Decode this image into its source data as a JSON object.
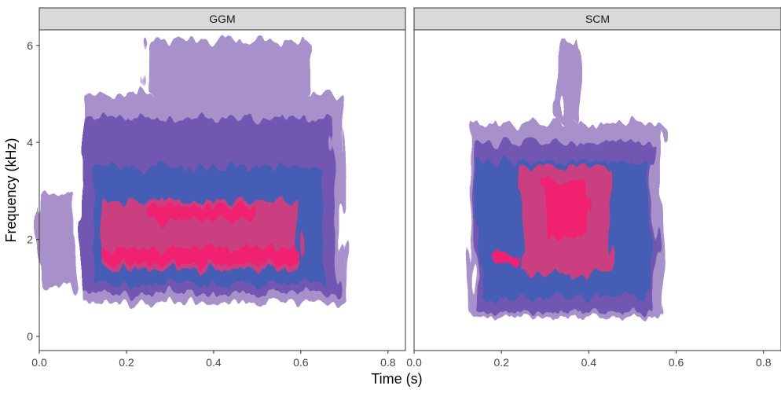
{
  "chart_data": {
    "type": "spectrogram",
    "x_label": "Time (s)",
    "y_label": "Frequency (kHz)",
    "xlim": [
      0,
      0.84
    ],
    "ylim": [
      -0.29,
      6.32
    ],
    "xticks": [
      {
        "value": 0,
        "label": "0.0"
      },
      {
        "value": 0.2,
        "label": "0.2"
      },
      {
        "value": 0.4,
        "label": "0.4"
      },
      {
        "value": 0.6,
        "label": "0.6"
      },
      {
        "value": 0.8,
        "label": "0.8"
      }
    ],
    "yticks": [
      0,
      2,
      4,
      6
    ],
    "level_colors": [
      "#a48cc8",
      "#6b4fae",
      "#3d55b2",
      "#c8357a",
      "#f0186a"
    ],
    "panels": [
      {
        "name": "GGM",
        "regions": [
          {
            "t": [
              0.0,
              0.08
            ],
            "f": [
              1.0,
              3.0
            ],
            "level": 0
          },
          {
            "t": [
              0.1,
              0.7
            ],
            "f": [
              0.7,
              5.0
            ],
            "level": 0
          },
          {
            "t": [
              0.25,
              0.62
            ],
            "f": [
              5.0,
              6.1
            ],
            "level": 0
          },
          {
            "t": [
              0.1,
              0.68
            ],
            "f": [
              0.9,
              4.5
            ],
            "level": 1
          },
          {
            "t": [
              0.12,
              0.65
            ],
            "f": [
              1.1,
              3.5
            ],
            "level": 2
          },
          {
            "t": [
              0.15,
              0.6
            ],
            "f": [
              1.4,
              2.8
            ],
            "level": 3
          },
          {
            "t": [
              0.15,
              0.6
            ],
            "f": [
              1.5,
              1.8
            ],
            "level": 4
          },
          {
            "t": [
              0.25,
              0.5
            ],
            "f": [
              2.4,
              2.7
            ],
            "level": 4
          }
        ]
      },
      {
        "name": "SCM",
        "regions": [
          {
            "t": [
              0.13,
              0.57
            ],
            "f": [
              0.4,
              4.4
            ],
            "level": 0
          },
          {
            "t": [
              0.33,
              0.38
            ],
            "f": [
              4.4,
              6.1
            ],
            "level": 0
          },
          {
            "t": [
              0.14,
              0.55
            ],
            "f": [
              0.5,
              4.0
            ],
            "level": 1
          },
          {
            "t": [
              0.15,
              0.54
            ],
            "f": [
              0.8,
              3.6
            ],
            "level": 2
          },
          {
            "t": [
              0.25,
              0.45
            ],
            "f": [
              1.3,
              3.5
            ],
            "level": 3
          },
          {
            "t": [
              0.3,
              0.4
            ],
            "f": [
              2.0,
              3.2
            ],
            "level": 4
          },
          {
            "t": [
              0.18,
              0.24
            ],
            "f": [
              1.5,
              1.7
            ],
            "level": 4
          }
        ]
      }
    ]
  }
}
